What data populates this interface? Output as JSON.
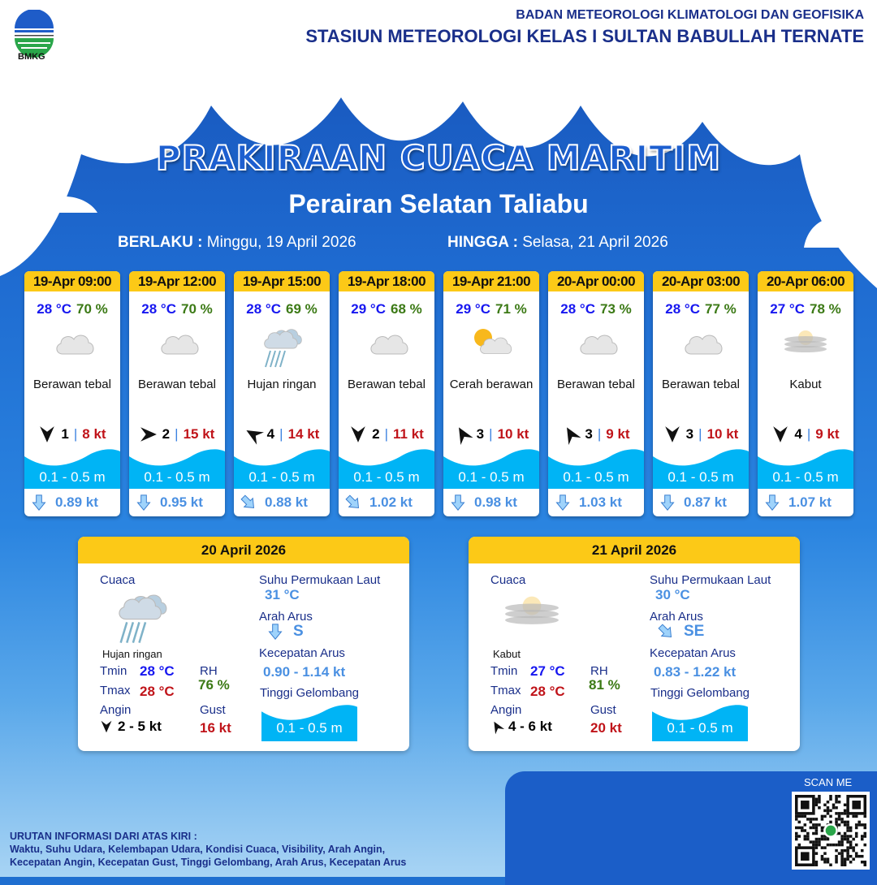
{
  "header": {
    "org": "BADAN METEOROLOGI KLIMATOLOGI DAN GEOFISIKA",
    "station": "STASIUN METEOROLOGI KELAS I SULTAN BABULLAH TERNATE",
    "logo_text": "BMKG"
  },
  "title": "PRAKIRAAN CUACA MARITIM",
  "area": "Perairan Selatan Taliabu",
  "validity": {
    "from_label": "BERLAKU :",
    "from": "Minggu, 19 April 2026",
    "to_label": "HINGGA :",
    "to": "Selasa, 21 April 2026"
  },
  "forecasts": [
    {
      "time": "19-Apr 09:00",
      "temp": "28 °C",
      "rh": "70 %",
      "icon": "thick-cloud-icon",
      "cond": "Berawan tebal",
      "wind_dir_deg": 180,
      "wind": "1",
      "gust": "8 kt",
      "wave": "0.1 - 0.5 m",
      "current_dir_deg": 180,
      "current": "0.89 kt"
    },
    {
      "time": "19-Apr 12:00",
      "temp": "28 °C",
      "rh": "70 %",
      "icon": "thick-cloud-icon",
      "cond": "Berawan tebal",
      "wind_dir_deg": 90,
      "wind": "2",
      "gust": "15 kt",
      "wave": "0.1 - 0.5 m",
      "current_dir_deg": 180,
      "current": "0.95 kt"
    },
    {
      "time": "19-Apr 15:00",
      "temp": "28 °C",
      "rh": "69 %",
      "icon": "light-rain-icon",
      "cond": "Hujan ringan",
      "wind_dir_deg": -60,
      "wind": "4",
      "gust": "14 kt",
      "wave": "0.1 - 0.5 m",
      "current_dir_deg": 135,
      "current": "0.88 kt"
    },
    {
      "time": "19-Apr 18:00",
      "temp": "29 °C",
      "rh": "68 %",
      "icon": "thick-cloud-icon",
      "cond": "Berawan tebal",
      "wind_dir_deg": 180,
      "wind": "2",
      "gust": "11 kt",
      "wave": "0.1 - 0.5 m",
      "current_dir_deg": 135,
      "current": "1.02 kt"
    },
    {
      "time": "19-Apr 21:00",
      "temp": "29 °C",
      "rh": "71 %",
      "icon": "partly-cloudy-icon",
      "cond": "Cerah berawan",
      "wind_dir_deg": -30,
      "wind": "3",
      "gust": "10 kt",
      "wave": "0.1 - 0.5 m",
      "current_dir_deg": 180,
      "current": "0.98 kt"
    },
    {
      "time": "20-Apr 00:00",
      "temp": "28 °C",
      "rh": "73 %",
      "icon": "thick-cloud-icon",
      "cond": "Berawan tebal",
      "wind_dir_deg": -30,
      "wind": "3",
      "gust": "9 kt",
      "wave": "0.1 - 0.5 m",
      "current_dir_deg": 180,
      "current": "1.03 kt"
    },
    {
      "time": "20-Apr 03:00",
      "temp": "28 °C",
      "rh": "77 %",
      "icon": "thick-cloud-icon",
      "cond": "Berawan tebal",
      "wind_dir_deg": 180,
      "wind": "3",
      "gust": "10 kt",
      "wave": "0.1 - 0.5 m",
      "current_dir_deg": 180,
      "current": "0.87 kt"
    },
    {
      "time": "20-Apr 06:00",
      "temp": "27 °C",
      "rh": "78 %",
      "icon": "fog-icon",
      "cond": "Kabut",
      "wind_dir_deg": 180,
      "wind": "4",
      "gust": "9 kt",
      "wave": "0.1 - 0.5 m",
      "current_dir_deg": 180,
      "current": "1.07 kt"
    }
  ],
  "daily": [
    {
      "date": "20 April 2026",
      "cuaca_label": "Cuaca",
      "icon": "light-rain-icon",
      "cond": "Hujan ringan",
      "tmin_label": "Tmin",
      "tmin": "28 °C",
      "tmax_label": "Tmax",
      "tmax": "28 °C",
      "rh_label": "RH",
      "rh": "76 %",
      "angin_label": "Angin",
      "wind_dir_deg": 180,
      "wind": "2  - 5 kt",
      "gust_label": "Gust",
      "gust": "16 kt",
      "sst_label": "Suhu Permukaan Laut",
      "sst": "31 °C",
      "arah_label": "Arah Arus",
      "current_dir_deg": 180,
      "current_dir": "S",
      "kec_label": "Kecepatan Arus",
      "current_speed": "0.90 - 1.14 kt",
      "wave_label": "Tinggi Gelombang",
      "wave": "0.1 - 0.5 m"
    },
    {
      "date": "21 April 2026",
      "cuaca_label": "Cuaca",
      "icon": "fog-icon",
      "cond": "Kabut",
      "tmin_label": "Tmin",
      "tmin": "27 °C",
      "tmax_label": "Tmax",
      "tmax": "28 °C",
      "rh_label": "RH",
      "rh": "81 %",
      "angin_label": "Angin",
      "wind_dir_deg": -30,
      "wind": "4  - 6 kt",
      "gust_label": "Gust",
      "gust": "20 kt",
      "sst_label": "Suhu Permukaan Laut",
      "sst": "30 °C",
      "arah_label": "Arah Arus",
      "current_dir_deg": 135,
      "current_dir": "SE",
      "kec_label": "Kecepatan Arus",
      "current_speed": "0.83 - 1.22 kt",
      "wave_label": "Tinggi Gelombang",
      "wave": "0.1 - 0.5 m"
    }
  ],
  "qr": {
    "label": "SCAN ME"
  },
  "footer": {
    "line1": "URUTAN INFORMASI DARI ATAS KIRI :",
    "line2": "Waktu, Suhu Udara, Kelembapan Udara, Kondisi Cuaca, Visibility, Arah Angin,",
    "line3": "Kecepatan Angin, Kecepatan Gust, Tinggi Gelombang, Arah Arus, Kecepatan Arus"
  },
  "colors": {
    "header_yellow": "#fcc917",
    "temp": "#1717f0",
    "rh": "#3c7a16",
    "gust": "#c0141a",
    "wave": "#00b4f5",
    "current": "#4a90e2"
  }
}
